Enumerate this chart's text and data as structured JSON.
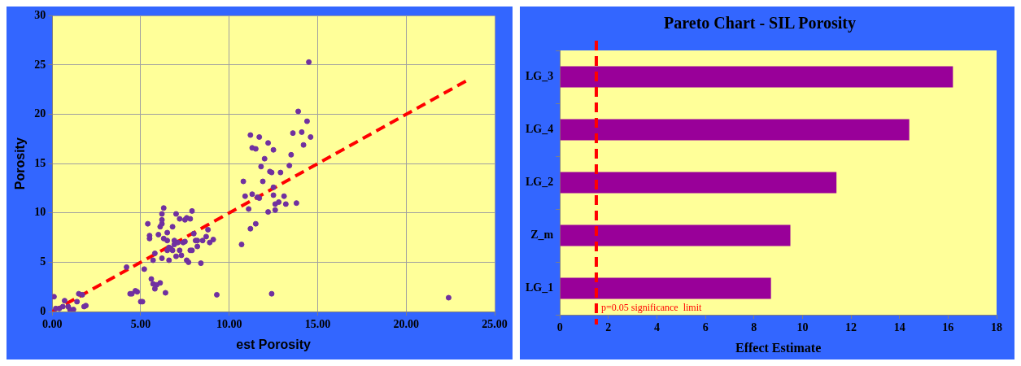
{
  "chart_data": [
    {
      "type": "scatter",
      "xlabel": "est Porosity",
      "ylabel": "Porosity",
      "grid": true,
      "legend": false,
      "marker": "circle",
      "xlim": [
        0,
        25
      ],
      "xticks": [
        {
          "value": 0,
          "label": "0.00"
        },
        {
          "value": 5,
          "label": "5.00"
        },
        {
          "value": 10,
          "label": "10.00"
        },
        {
          "value": 15,
          "label": "15.00"
        },
        {
          "value": 20,
          "label": "20.00"
        },
        {
          "value": 25,
          "label": "25.00"
        }
      ],
      "ylim": [
        0,
        30
      ],
      "yticks": [
        0,
        5,
        10,
        15,
        20,
        25,
        30
      ],
      "series": [
        {
          "type": "scatter",
          "color": "#7030a0",
          "x": [
            0.1,
            0.2,
            0.4,
            0.6,
            0.7,
            0.9,
            1.0,
            1.2,
            1.4,
            1.5,
            1.7,
            1.8,
            1.9,
            4.2,
            4.4,
            4.5,
            4.7,
            4.8,
            5.0,
            5.1,
            5.2,
            5.4,
            5.5,
            5.5,
            5.6,
            5.7,
            5.7,
            5.8,
            5.9,
            5.8,
            6.0,
            6.1,
            6.1,
            6.2,
            6.2,
            6.2,
            6.3,
            6.2,
            6.3,
            6.4,
            6.5,
            6.5,
            6.5,
            6.6,
            6.6,
            6.7,
            6.8,
            6.8,
            6.9,
            6.9,
            7.0,
            7.0,
            7.1,
            7.2,
            7.2,
            7.3,
            7.4,
            7.5,
            7.5,
            7.6,
            7.6,
            7.7,
            7.8,
            7.8,
            7.9,
            7.9,
            8.0,
            8.1,
            8.2,
            8.2,
            8.4,
            8.5,
            8.7,
            8.8,
            8.9,
            9.1,
            9.3,
            10.7,
            10.8,
            10.9,
            11.1,
            11.2,
            11.2,
            11.3,
            11.3,
            11.5,
            11.5,
            11.6,
            11.7,
            11.7,
            11.8,
            11.9,
            12.0,
            12.2,
            12.2,
            12.3,
            12.4,
            12.4,
            12.5,
            12.5,
            12.5,
            12.6,
            12.6,
            12.8,
            12.9,
            13.1,
            13.2,
            13.4,
            13.5,
            13.6,
            13.8,
            13.9,
            14.1,
            14.2,
            14.4,
            14.5,
            14.6,
            22.4
          ],
          "values": [
            1.5,
            0.3,
            0.3,
            0.5,
            1.1,
            0.5,
            0.2,
            0.2,
            1.0,
            1.8,
            1.7,
            0.5,
            0.6,
            4.5,
            1.8,
            1.8,
            2.1,
            2.0,
            1.0,
            1.0,
            4.3,
            8.9,
            7.7,
            7.4,
            3.3,
            5.2,
            2.8,
            2.3,
            2.7,
            5.9,
            7.8,
            2.9,
            8.6,
            8.9,
            9.3,
            9.9,
            10.5,
            5.4,
            7.4,
            1.9,
            8.0,
            7.2,
            6.2,
            5.2,
            6.5,
            6.4,
            6.2,
            8.6,
            6.8,
            7.2,
            5.6,
            9.9,
            7.0,
            9.4,
            6.2,
            5.7,
            7.0,
            9.3,
            7.1,
            9.5,
            5.2,
            5.0,
            9.4,
            6.2,
            6.2,
            10.2,
            7.9,
            7.2,
            7.2,
            6.6,
            4.9,
            7.2,
            7.6,
            8.3,
            7.0,
            7.3,
            1.7,
            6.8,
            13.2,
            11.7,
            10.4,
            8.4,
            17.9,
            11.9,
            16.6,
            8.9,
            16.5,
            11.6,
            17.7,
            11.5,
            14.7,
            13.2,
            15.5,
            10.1,
            17.1,
            14.2,
            14.1,
            1.8,
            16.4,
            12.6,
            11.8,
            10.3,
            10.9,
            11.1,
            14.1,
            11.7,
            10.9,
            14.8,
            15.9,
            18.1,
            11.0,
            20.3,
            18.2,
            16.9,
            19.3,
            25.3,
            17.7,
            1.4
          ]
        },
        {
          "type": "line",
          "color": "#ff0000",
          "line_style": "dashed",
          "marker": "none",
          "x": [
            0,
            23.5
          ],
          "values": [
            0,
            23.5
          ]
        }
      ]
    },
    {
      "type": "bar",
      "orientation": "horizontal",
      "title": "Pareto Chart - SIL Porosity",
      "xlabel": "Effect Estimate",
      "grid": false,
      "legend": false,
      "categories": [
        "LG_3",
        "LG_4",
        "LG_2",
        "Z_m",
        "LG_1"
      ],
      "values": [
        16.2,
        14.4,
        11.4,
        9.5,
        8.7
      ],
      "color": "#990099",
      "xlim": [
        0,
        18
      ],
      "xticks": [
        0,
        2,
        4,
        6,
        8,
        10,
        12,
        14,
        16,
        18
      ],
      "ref_lines": [
        {
          "axis": "x",
          "value": 1.5,
          "color": "#ff0000",
          "line_style": "dashed"
        }
      ],
      "annotations": [
        {
          "text": "p=0.05 significance  limit",
          "x": 1.5
        }
      ]
    }
  ]
}
